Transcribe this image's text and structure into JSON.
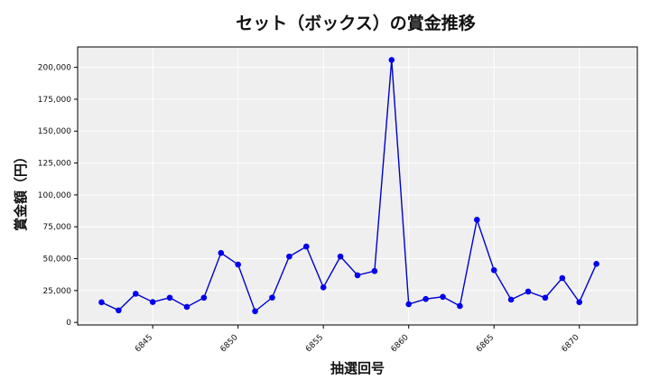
{
  "chart_data": {
    "type": "line",
    "title": "セット（ボックス）の賞金推移",
    "xlabel": "抽選回号",
    "ylabel": "賞金額（円）",
    "x": [
      6842,
      6843,
      6844,
      6845,
      6846,
      6847,
      6848,
      6849,
      6850,
      6851,
      6852,
      6853,
      6854,
      6855,
      6856,
      6857,
      6858,
      6859,
      6860,
      6861,
      6862,
      6863,
      6864,
      6865,
      6866,
      6867,
      6868,
      6869,
      6870,
      6871
    ],
    "series": [
      {
        "values": [
          15800,
          9500,
          22500,
          16000,
          19400,
          12200,
          19400,
          54500,
          45400,
          8800,
          19500,
          51700,
          59500,
          27500,
          51700,
          37000,
          40300,
          205800,
          14300,
          18400,
          20100,
          12900,
          80500,
          41000,
          17900,
          24200,
          19400,
          34800,
          15900,
          45900
        ]
      }
    ],
    "xlim": [
      6840.6,
      6873.4
    ],
    "ylim": [
      -2000,
      216000
    ],
    "xticks": [
      6845,
      6850,
      6855,
      6860,
      6865,
      6870
    ],
    "yticks": [
      0,
      25000,
      50000,
      75000,
      100000,
      125000,
      150000,
      175000,
      200000
    ],
    "ytick_labels": [
      "0",
      "25,000",
      "50,000",
      "75,000",
      "100,000",
      "125,000",
      "150,000",
      "175,000",
      "200,000"
    ],
    "grid": true,
    "colors": {
      "line": "#0000cc",
      "marker": "#0000ee",
      "plot_bg": "#efefef",
      "grid": "#ffffff"
    }
  }
}
